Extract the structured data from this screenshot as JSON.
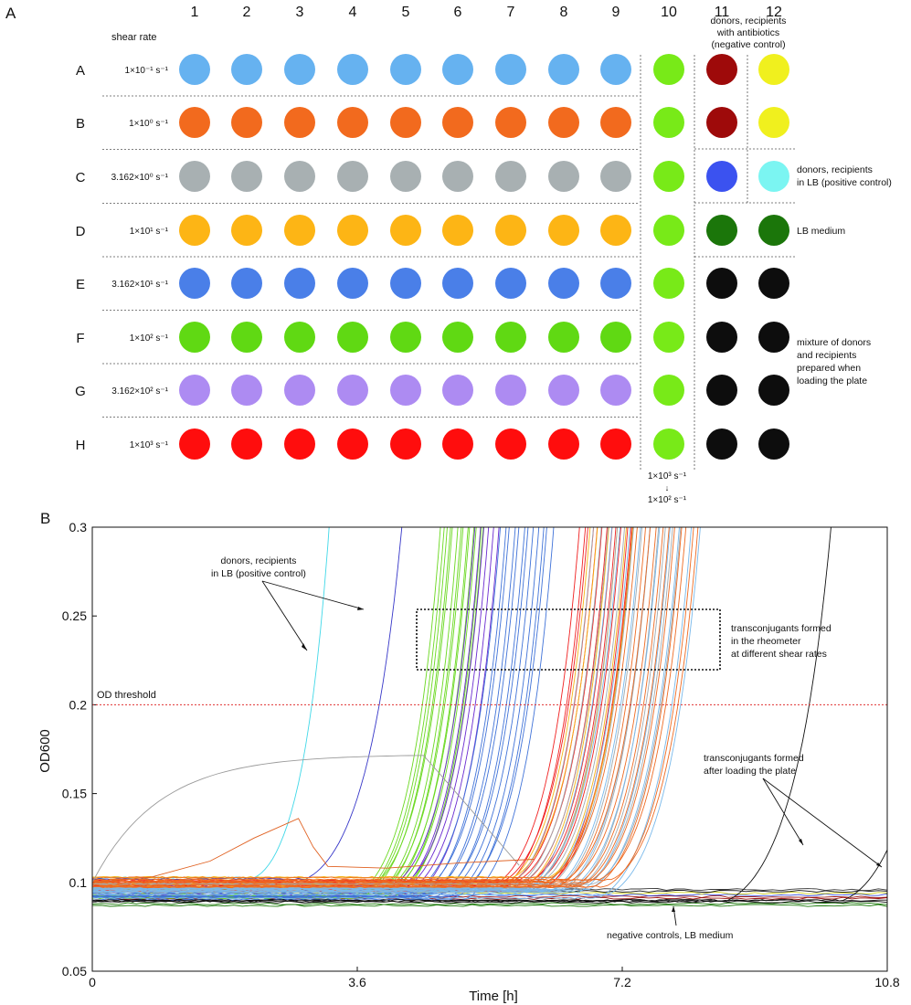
{
  "panel_a": {
    "label": "A",
    "shear_rate_header": "shear rate",
    "columns": [
      "1",
      "2",
      "3",
      "4",
      "5",
      "6",
      "7",
      "8",
      "9",
      "10",
      "11",
      "12"
    ],
    "rows": [
      {
        "row": "A",
        "rate": "1×10⁻¹ s⁻¹"
      },
      {
        "row": "B",
        "rate": "1×10⁰ s⁻¹"
      },
      {
        "row": "C",
        "rate": "3.162×10⁰ s⁻¹"
      },
      {
        "row": "D",
        "rate": "1×10¹ s⁻¹"
      },
      {
        "row": "E",
        "rate": "3.162×10¹ s⁻¹"
      },
      {
        "row": "F",
        "rate": "1×10² s⁻¹"
      },
      {
        "row": "G",
        "rate": "3.162×10² s⁻¹"
      },
      {
        "row": "H",
        "rate": "1×10³ s⁻¹"
      }
    ],
    "row_colors": [
      "#66b2f0",
      "#f26a1e",
      "#a8b0b2",
      "#fdb515",
      "#4a7fe8",
      "#60d913",
      "#ad8bf2",
      "#ff0d0d"
    ],
    "col10_color": "#78ea18",
    "col11_colors": [
      "#9e0a0a",
      "#9e0a0a",
      "#3b52f0",
      "#1b760a",
      "#0d0d0d",
      "#0d0d0d",
      "#0d0d0d",
      "#0d0d0d"
    ],
    "col12_colors": [
      "#f0f01e",
      "#f0f01e",
      "#7bf5f2",
      "#1b760a",
      "#0d0d0d",
      "#0d0d0d",
      "#0d0d0d",
      "#0d0d0d"
    ],
    "annotation_negative": [
      "donors, recipients",
      "with antibiotics",
      "(negative control)"
    ],
    "annotation_positive": [
      "donors, recipients",
      "in LB (positive control)"
    ],
    "annotation_lb": "LB medium",
    "annotation_mixture": [
      "mixture of donors",
      "and recipients",
      "prepared when",
      "loading the plate"
    ],
    "col10_note_top": "1×10³ s⁻¹",
    "col10_note_arrow": "↓",
    "col10_note_bottom": "1×10² s⁻¹"
  },
  "panel_b": {
    "label": "B",
    "ylabel": "OD600",
    "xlabel": "Time [h]",
    "threshold_label": "OD threshold",
    "annotation_positive": [
      "donors, recipients",
      "in LB (positive control)"
    ],
    "annotation_rheometer": [
      "transconjugants formed",
      "in the rheometer",
      "at different shear rates"
    ],
    "annotation_after_loading": [
      "transconjugants formed",
      "after loading the plate"
    ],
    "annotation_negative": "negative controls, LB medium"
  },
  "chart_data": {
    "type": "line",
    "title": "",
    "xlabel": "Time [h]",
    "ylabel": "OD600",
    "xlim": [
      0,
      10.8
    ],
    "ylim": [
      0.05,
      0.3
    ],
    "xticks": [
      0,
      3.6,
      7.2,
      10.8
    ],
    "xtick_labels": [
      "0",
      "3.6",
      "7.2",
      "10.8"
    ],
    "yticks": [
      0.05,
      0.1,
      0.15,
      0.2,
      0.25,
      0.3
    ],
    "ytick_labels": [
      "0.05",
      "0.1",
      "0.15",
      "0.2",
      "0.25",
      "0.3"
    ],
    "threshold": 0.2,
    "series": [
      {
        "name": "positive control (cyan)",
        "color": "#40d8e8",
        "count": 1,
        "onset": 2.2,
        "steep": 2.6,
        "base": 0.1,
        "spread": 0
      },
      {
        "name": "positive control (blue)",
        "color": "#3636c8",
        "count": 1,
        "onset": 2.9,
        "steep": 1.5,
        "base": 0.1,
        "spread": 0
      },
      {
        "name": "1×10² s⁻¹ (green)",
        "color": "#6ad820",
        "count": 14,
        "onset": 3.85,
        "steep": 2.1,
        "base": 0.094,
        "spread": 0.3
      },
      {
        "name": "1×10³ → 1×10² s⁻¹ (purple)",
        "color": "#6a2ad0",
        "count": 6,
        "onset": 4.2,
        "steep": 2.1,
        "base": 0.095,
        "spread": 0.15
      },
      {
        "name": "3.162×10¹ s⁻¹ (blue)",
        "color": "#3f72d8",
        "count": 12,
        "onset": 4.7,
        "steep": 2.0,
        "base": 0.093,
        "spread": 0.35
      },
      {
        "name": "1×10³ s⁻¹ (red)",
        "color": "#f02020",
        "count": 12,
        "onset": 5.8,
        "steep": 2.0,
        "base": 0.098,
        "spread": 0.35
      },
      {
        "name": "1×10¹ s⁻¹ (yellow)",
        "color": "#f5b418",
        "count": 6,
        "onset": 5.9,
        "steep": 2.0,
        "base": 0.1,
        "spread": 0.3
      },
      {
        "name": "3.162×10⁰ s⁻¹ (grey)",
        "color": "#a0aab0",
        "count": 12,
        "onset": 6.2,
        "steep": 1.9,
        "base": 0.097,
        "spread": 0.6
      },
      {
        "name": "1×10⁻¹ s⁻¹ (light blue)",
        "color": "#78b8ea",
        "count": 10,
        "onset": 6.4,
        "steep": 1.8,
        "base": 0.094,
        "spread": 0.6
      },
      {
        "name": "1×10⁰ s⁻¹ (orange)",
        "color": "#ee6a22",
        "count": 12,
        "onset": 6.6,
        "steep": 1.9,
        "base": 0.1,
        "spread": 0.45
      },
      {
        "name": "after loading the plate (black)",
        "color": "#111111",
        "count": 2,
        "onset": 9.4,
        "steep": 1.4,
        "base": 0.09,
        "spread": 0.8
      }
    ],
    "flat_series": [
      {
        "name": "negative controls, LB medium",
        "values": [
          0.087,
          0.088,
          0.089,
          0.09,
          0.091,
          0.092,
          0.093,
          0.094,
          0.095,
          0.096
        ],
        "colors": [
          "#1b7a0a",
          "#1b7a0a",
          "#111111",
          "#111111",
          "#9a1010",
          "#9a1010",
          "#3a50e0",
          "#d0d020",
          "#111111",
          "#3a3a3a"
        ]
      }
    ]
  }
}
